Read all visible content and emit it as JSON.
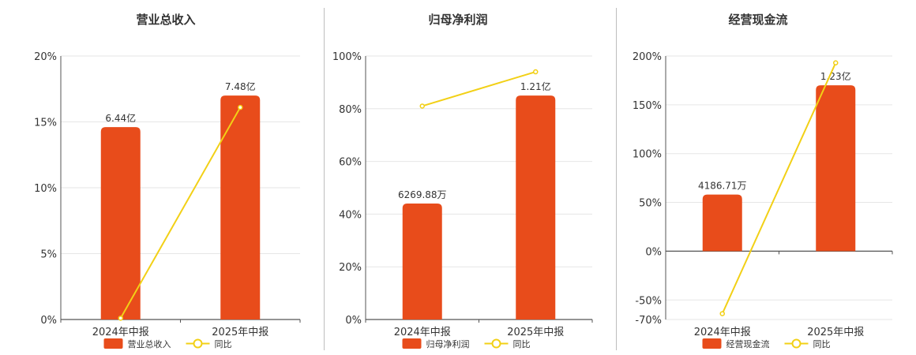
{
  "colors": {
    "bar": "#E84C1B",
    "line": "#F2D016",
    "axis": "#555555",
    "grid": "#e6e6e6",
    "text": "#333333"
  },
  "chart_data": [
    {
      "type": "bar",
      "title": "营业总收入",
      "categories": [
        "2024年中报",
        "2025年中报"
      ],
      "ylim": [
        0,
        20
      ],
      "yticks": [
        0,
        5,
        10,
        15,
        20
      ],
      "tick_labels": [
        "0%",
        "5%",
        "10%",
        "15%",
        "20%"
      ],
      "bar_values": [
        14.6,
        17.0
      ],
      "bar_labels": [
        "6.44亿",
        "7.48亿"
      ],
      "line_values": [
        0.1,
        16.1
      ],
      "legend": [
        "营业总收入",
        "同比"
      ],
      "grid": true
    },
    {
      "type": "bar",
      "title": "归母净利润",
      "categories": [
        "2024年中报",
        "2025年中报"
      ],
      "ylim": [
        0,
        100
      ],
      "yticks": [
        0,
        20,
        40,
        60,
        80,
        100
      ],
      "tick_labels": [
        "0%",
        "20%",
        "40%",
        "60%",
        "80%",
        "100%"
      ],
      "bar_values": [
        44,
        85
      ],
      "bar_labels": [
        "6269.88万",
        "1.21亿"
      ],
      "line_values": [
        81,
        94
      ],
      "legend": [
        "归母净利润",
        "同比"
      ],
      "grid": true
    },
    {
      "type": "bar",
      "title": "经营现金流",
      "categories": [
        "2024年中报",
        "2025年中报"
      ],
      "ylim": [
        -70,
        200
      ],
      "yticks": [
        -70,
        -50,
        0,
        50,
        100,
        150,
        200
      ],
      "tick_labels": [
        "-70%",
        "-50%",
        "0%",
        "50%",
        "100%",
        "150%",
        "200%"
      ],
      "bar_values": [
        58,
        170
      ],
      "bar_labels": [
        "4186.71万",
        "1.23亿"
      ],
      "line_values": [
        -64,
        193
      ],
      "legend": [
        "经营现金流",
        "同比"
      ],
      "grid": true
    }
  ]
}
